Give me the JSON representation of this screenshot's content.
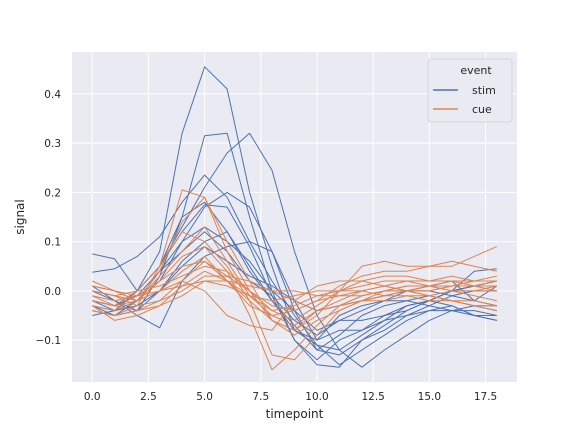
{
  "chart_data": {
    "type": "line",
    "title": "",
    "xlabel": "timepoint",
    "ylabel": "signal",
    "xlim": [
      -0.9,
      18.9
    ],
    "ylim": [
      -0.185,
      0.485
    ],
    "xticks": [
      0,
      2.5,
      5,
      7.5,
      10,
      12.5,
      15,
      17.5
    ],
    "xtick_labels": [
      "0.0",
      "2.5",
      "5.0",
      "7.5",
      "10.0",
      "12.5",
      "15.0",
      "17.5"
    ],
    "yticks": [
      -0.1,
      0,
      0.1,
      0.2,
      0.3,
      0.4
    ],
    "ytick_labels": [
      "−0.1",
      "0.0",
      "0.1",
      "0.2",
      "0.3",
      "0.4"
    ],
    "grid": true,
    "background": "#EAEAF2",
    "legend": {
      "title": "event",
      "placement": "top-right",
      "entries": [
        {
          "label": "stim",
          "color": "#4C72B0"
        },
        {
          "label": "cue",
          "color": "#DD8452"
        }
      ]
    },
    "x": [
      0,
      1,
      2,
      3,
      4,
      5,
      6,
      7,
      8,
      9,
      10,
      11,
      12,
      13,
      14,
      15,
      16,
      17,
      18
    ],
    "series": [
      {
        "group": "stim",
        "color": "#4C72B0",
        "values": [
          -0.02,
          -0.03,
          0.0,
          0.08,
          0.32,
          0.455,
          0.41,
          0.2,
          0.05,
          -0.08,
          -0.1,
          -0.05,
          -0.03,
          -0.02,
          0.0,
          0.01,
          0.02,
          -0.02,
          0.01
        ]
      },
      {
        "group": "stim",
        "color": "#4C72B0",
        "values": [
          0.075,
          0.065,
          0.0,
          0.05,
          0.15,
          0.315,
          0.32,
          0.15,
          0.0,
          -0.1,
          -0.14,
          -0.1,
          -0.08,
          -0.05,
          -0.03,
          -0.02,
          0.0,
          0.04,
          0.045
        ]
      },
      {
        "group": "stim",
        "color": "#4C72B0",
        "values": [
          0.038,
          0.045,
          0.07,
          0.11,
          0.18,
          0.235,
          0.19,
          0.1,
          0.02,
          -0.05,
          -0.11,
          -0.15,
          -0.12,
          -0.09,
          -0.06,
          -0.04,
          -0.03,
          -0.05,
          -0.06
        ]
      },
      {
        "group": "stim",
        "color": "#4C72B0",
        "values": [
          -0.02,
          -0.04,
          0.0,
          0.05,
          0.13,
          0.21,
          0.28,
          0.32,
          0.245,
          0.08,
          -0.05,
          -0.12,
          -0.155,
          -0.12,
          -0.09,
          -0.06,
          -0.04,
          -0.03,
          -0.03
        ]
      },
      {
        "group": "stim",
        "color": "#4C72B0",
        "values": [
          -0.05,
          -0.04,
          -0.02,
          0.02,
          0.1,
          0.17,
          0.2,
          0.17,
          0.08,
          -0.04,
          -0.12,
          -0.13,
          -0.1,
          -0.08,
          -0.05,
          -0.03,
          -0.01,
          0.0,
          0.0
        ]
      },
      {
        "group": "stim",
        "color": "#4C72B0",
        "values": [
          -0.03,
          -0.05,
          -0.02,
          0.04,
          0.08,
          0.12,
          0.08,
          0.02,
          -0.01,
          -0.06,
          -0.09,
          -0.06,
          -0.04,
          -0.02,
          -0.02,
          -0.03,
          -0.04,
          -0.05,
          -0.05
        ]
      },
      {
        "group": "stim",
        "color": "#4C72B0",
        "values": [
          -0.02,
          -0.03,
          0.0,
          0.05,
          0.12,
          0.175,
          0.17,
          0.09,
          -0.01,
          -0.1,
          -0.15,
          -0.155,
          -0.1,
          -0.07,
          -0.04,
          -0.02,
          0.0,
          0.01,
          0.02
        ]
      },
      {
        "group": "stim",
        "color": "#4C72B0",
        "values": [
          0.0,
          -0.02,
          -0.05,
          -0.075,
          0.02,
          0.07,
          0.09,
          0.1,
          0.08,
          -0.02,
          -0.1,
          -0.08,
          -0.08,
          -0.06,
          -0.05,
          -0.04,
          -0.04,
          -0.04,
          -0.05
        ]
      },
      {
        "group": "stim",
        "color": "#4C72B0",
        "values": [
          -0.03,
          -0.04,
          -0.03,
          0.0,
          0.06,
          0.1,
          0.12,
          0.05,
          -0.02,
          -0.07,
          -0.12,
          -0.09,
          -0.05,
          -0.03,
          -0.02,
          -0.01,
          -0.02,
          -0.03,
          -0.04
        ]
      },
      {
        "group": "stim",
        "color": "#4C72B0",
        "values": [
          -0.04,
          -0.05,
          -0.04,
          0.03,
          0.15,
          0.18,
          0.12,
          0.04,
          -0.02,
          -0.08,
          -0.11,
          -0.12,
          -0.09,
          -0.06,
          -0.03,
          -0.02,
          -0.03,
          -0.05,
          -0.06
        ]
      },
      {
        "group": "stim",
        "color": "#4C72B0",
        "values": [
          -0.02,
          -0.03,
          -0.01,
          0.04,
          0.1,
          0.13,
          0.1,
          0.06,
          0.0,
          -0.04,
          -0.08,
          -0.06,
          -0.06,
          -0.05,
          -0.04,
          -0.02,
          0.0,
          0.01,
          0.02
        ]
      },
      {
        "group": "stim",
        "color": "#4C72B0",
        "values": [
          0.01,
          -0.02,
          -0.04,
          0.0,
          0.05,
          0.09,
          0.06,
          0.03,
          0.01,
          -0.02,
          -0.04,
          -0.03,
          -0.02,
          -0.01,
          0.0,
          0.0,
          -0.01,
          -0.02,
          -0.03
        ]
      },
      {
        "group": "cue",
        "color": "#DD8452",
        "values": [
          -0.04,
          -0.05,
          -0.03,
          0.05,
          0.205,
          0.19,
          0.1,
          0.02,
          -0.06,
          -0.09,
          -0.06,
          -0.04,
          -0.02,
          -0.01,
          0.0,
          0.0,
          0.01,
          0.01,
          0.02
        ]
      },
      {
        "group": "cue",
        "color": "#DD8452",
        "values": [
          -0.03,
          -0.04,
          -0.02,
          0.04,
          0.14,
          0.19,
          0.08,
          0.0,
          -0.06,
          -0.08,
          -0.04,
          -0.02,
          0.0,
          0.01,
          0.02,
          0.02,
          0.03,
          0.02,
          0.02
        ]
      },
      {
        "group": "cue",
        "color": "#DD8452",
        "values": [
          0.0,
          -0.01,
          -0.02,
          0.03,
          0.08,
          0.13,
          0.06,
          -0.01,
          -0.05,
          -0.07,
          -0.04,
          -0.03,
          -0.01,
          0.0,
          0.01,
          0.01,
          0.0,
          0.0,
          0.01
        ]
      },
      {
        "group": "cue",
        "color": "#DD8452",
        "values": [
          -0.02,
          -0.03,
          0.0,
          0.05,
          0.12,
          0.1,
          0.05,
          -0.02,
          -0.13,
          -0.14,
          -0.09,
          -0.04,
          -0.02,
          0.0,
          0.01,
          0.01,
          0.02,
          0.02,
          0.03
        ]
      },
      {
        "group": "cue",
        "color": "#DD8452",
        "values": [
          0.01,
          0.0,
          -0.02,
          0.02,
          0.07,
          0.09,
          0.04,
          -0.05,
          -0.16,
          -0.12,
          -0.07,
          -0.03,
          -0.01,
          0.0,
          0.0,
          0.01,
          0.01,
          0.02,
          0.02
        ]
      },
      {
        "group": "cue",
        "color": "#DD8452",
        "values": [
          -0.01,
          -0.02,
          -0.01,
          0.02,
          0.05,
          0.06,
          0.03,
          0.0,
          -0.04,
          -0.06,
          -0.03,
          0.0,
          0.02,
          0.03,
          0.03,
          0.02,
          0.02,
          0.01,
          0.0
        ]
      },
      {
        "group": "cue",
        "color": "#DD8452",
        "values": [
          0.0,
          -0.01,
          0.0,
          0.01,
          0.03,
          0.05,
          0.04,
          0.0,
          -0.03,
          -0.04,
          -0.02,
          0.01,
          0.03,
          0.04,
          0.04,
          0.05,
          0.05,
          0.07,
          0.09
        ]
      },
      {
        "group": "cue",
        "color": "#DD8452",
        "values": [
          -0.02,
          -0.03,
          -0.02,
          0.0,
          0.04,
          0.07,
          0.02,
          -0.02,
          -0.06,
          -0.08,
          -0.05,
          0.0,
          0.05,
          0.06,
          0.05,
          0.05,
          0.06,
          0.05,
          0.04
        ]
      },
      {
        "group": "cue",
        "color": "#DD8452",
        "values": [
          -0.04,
          -0.05,
          -0.04,
          -0.02,
          0.02,
          0.06,
          0.02,
          -0.03,
          -0.05,
          -0.04,
          -0.02,
          -0.01,
          0.0,
          0.01,
          0.0,
          -0.01,
          -0.02,
          -0.03,
          -0.04
        ]
      },
      {
        "group": "cue",
        "color": "#DD8452",
        "values": [
          0.0,
          -0.01,
          -0.03,
          -0.02,
          0.0,
          0.03,
          0.03,
          0.02,
          0.0,
          -0.02,
          -0.04,
          -0.03,
          -0.02,
          -0.02,
          -0.01,
          -0.01,
          0.0,
          0.0,
          0.0
        ]
      },
      {
        "group": "cue",
        "color": "#DD8452",
        "values": [
          -0.03,
          -0.06,
          -0.05,
          -0.03,
          0.01,
          0.04,
          0.02,
          -0.01,
          -0.04,
          -0.03,
          -0.01,
          0.0,
          0.01,
          0.02,
          0.02,
          0.01,
          0.0,
          -0.01,
          -0.02
        ]
      },
      {
        "group": "cue",
        "color": "#DD8452",
        "values": [
          0.02,
          0.0,
          -0.02,
          0.0,
          0.02,
          0.0,
          -0.05,
          -0.07,
          -0.08,
          -0.02,
          0.01,
          0.02,
          0.02,
          0.01,
          0.0,
          -0.01,
          -0.02,
          -0.03,
          -0.03
        ]
      },
      {
        "group": "cue",
        "color": "#DD8452",
        "values": [
          -0.01,
          -0.03,
          -0.04,
          -0.03,
          -0.01,
          0.02,
          0.01,
          -0.01,
          -0.02,
          -0.01,
          0.0,
          0.0,
          0.0,
          -0.01,
          -0.01,
          -0.02,
          -0.02,
          -0.02,
          -0.03
        ]
      },
      {
        "group": "cue",
        "color": "#DD8452",
        "values": [
          0.01,
          0.0,
          -0.01,
          0.0,
          0.01,
          0.02,
          0.02,
          0.01,
          0.0,
          0.0,
          -0.01,
          -0.01,
          -0.01,
          0.0,
          0.0,
          0.0,
          0.01,
          0.01,
          0.01
        ]
      }
    ]
  }
}
